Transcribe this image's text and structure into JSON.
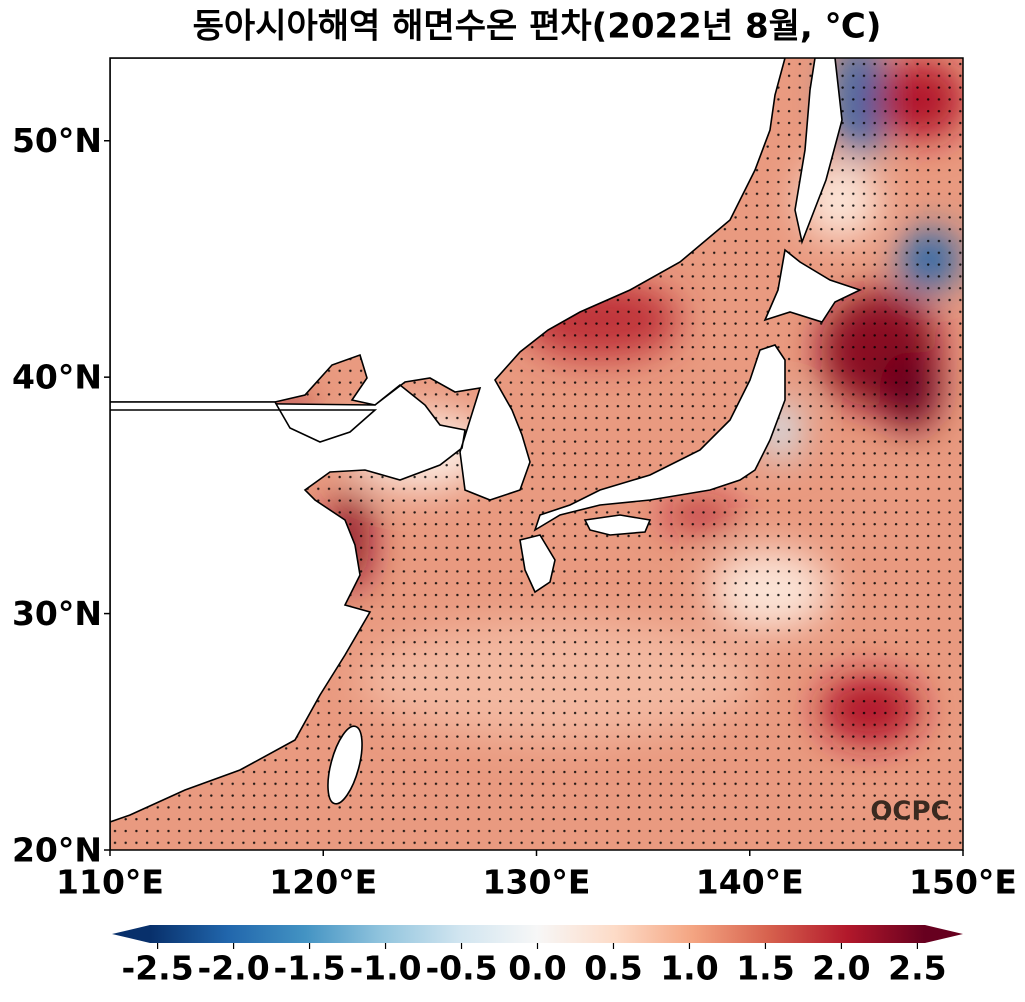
{
  "title": "동아시아해역 해면수온 편차(2022년 8월, ℃)",
  "map": {
    "xlim": [
      110,
      150
    ],
    "ylim": [
      20,
      53.5
    ],
    "xticks": [
      {
        "value": 110,
        "label": "110°E"
      },
      {
        "value": 120,
        "label": "120°E"
      },
      {
        "value": 130,
        "label": "130°E"
      },
      {
        "value": 140,
        "label": "140°E"
      },
      {
        "value": 150,
        "label": "150°E"
      }
    ],
    "yticks": [
      {
        "value": 20,
        "label": "20°N"
      },
      {
        "value": 30,
        "label": "30°N"
      },
      {
        "value": 40,
        "label": "40°N"
      },
      {
        "value": 50,
        "label": "50°N"
      }
    ]
  },
  "colorbar": {
    "lim": [
      -2.55,
      2.55
    ],
    "colors": [
      "#08306b",
      "#2166ac",
      "#4393c3",
      "#92c5de",
      "#d1e5f0",
      "#f7f7f7",
      "#fddbc7",
      "#f4a582",
      "#d6604d",
      "#b2182b",
      "#67001f"
    ],
    "ticks": [
      -2.5,
      {
        "value": -2,
        "label": "-2.0"
      },
      -1.5,
      {
        "value": -1,
        "label": "-1.0"
      },
      -0.5,
      {
        "value": 0,
        "label": "0.0"
      },
      0.5,
      {
        "value": 1,
        "label": "1.0"
      },
      1.5,
      {
        "value": 2,
        "label": "2.0"
      },
      2.5
    ]
  },
  "logo": "OCPC"
}
